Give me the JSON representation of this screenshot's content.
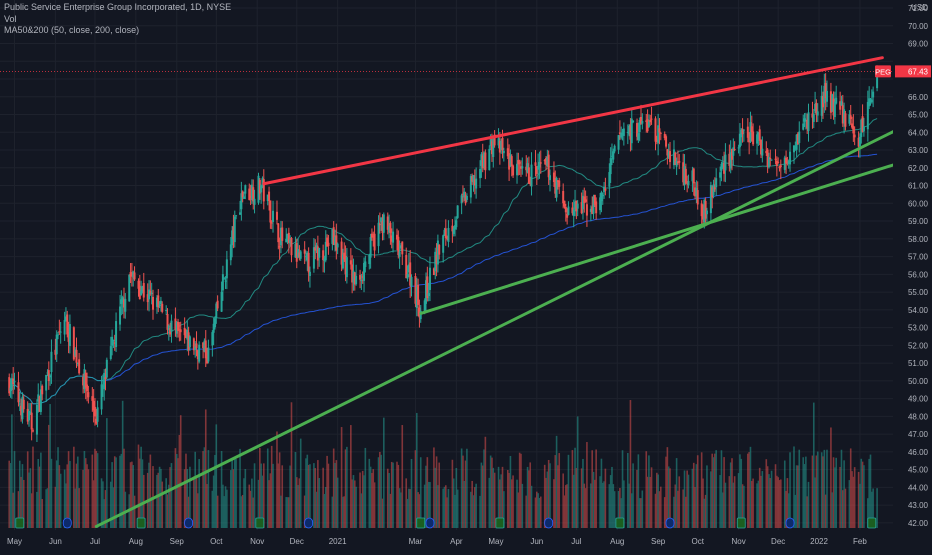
{
  "legend": {
    "title": "Public Service Enterprise Group Incorporated, 1D, NYSE",
    "volume": "Vol",
    "ma": "MA50&200 (50, close, 200, close)"
  },
  "price_axis": {
    "currency": "USD",
    "ticks": [
      "71.00",
      "70.00",
      "69.00",
      "68.00",
      "67.00",
      "66.00",
      "65.00",
      "64.00",
      "63.00",
      "62.00",
      "61.00",
      "60.00",
      "59.00",
      "58.00",
      "57.00",
      "56.00",
      "55.00",
      "54.00",
      "53.00",
      "52.00",
      "51.00",
      "50.00",
      "49.00",
      "48.00",
      "47.00",
      "46.00",
      "45.00",
      "44.00",
      "43.00",
      "42.00"
    ]
  },
  "last_price": {
    "symbol": "PEG",
    "value": "67.43",
    "color": "#f23645"
  },
  "colors": {
    "up": "#26a69a",
    "down": "#ef5350",
    "resistance": "#f23645",
    "support": "#4caf50",
    "ma50": "#26a69a",
    "ma200": "#2962ff"
  },
  "chart_data": {
    "type": "candlestick",
    "time_labels": [
      "May",
      "Jun",
      "Jul",
      "Aug",
      "Sep",
      "Oct",
      "Nov",
      "Dec",
      "2021",
      "Mar",
      "Apr",
      "May",
      "Jun",
      "Jul",
      "Aug",
      "Sep",
      "Oct",
      "Nov",
      "Dec",
      "2022",
      "Feb"
    ],
    "price_anchors": [
      {
        "t": "2020-04-27",
        "close": 50.0
      },
      {
        "t": "2020-05-14",
        "close": 47.5
      },
      {
        "t": "2020-06-08",
        "close": 53.5
      },
      {
        "t": "2020-06-25",
        "close": 49.5
      },
      {
        "t": "2020-07-02",
        "close": 48.0
      },
      {
        "t": "2020-07-27",
        "close": 56.0
      },
      {
        "t": "2020-08-19",
        "close": 54.0
      },
      {
        "t": "2020-09-02",
        "close": 52.5
      },
      {
        "t": "2020-09-25",
        "close": 51.5
      },
      {
        "t": "2020-10-20",
        "close": 60.5
      },
      {
        "t": "2020-11-04",
        "close": 61.0
      },
      {
        "t": "2020-11-19",
        "close": 58.0
      },
      {
        "t": "2020-12-08",
        "close": 56.5
      },
      {
        "t": "2020-12-28",
        "close": 58.0
      },
      {
        "t": "2021-01-15",
        "close": 55.5
      },
      {
        "t": "2021-02-04",
        "close": 59.0
      },
      {
        "t": "2021-02-25",
        "close": 56.0
      },
      {
        "t": "2021-03-05",
        "close": 54.0
      },
      {
        "t": "2021-03-19",
        "close": 57.5
      },
      {
        "t": "2021-04-13",
        "close": 61.0
      },
      {
        "t": "2021-04-29",
        "close": 63.5
      },
      {
        "t": "2021-05-20",
        "close": 61.5
      },
      {
        "t": "2021-06-10",
        "close": 62.0
      },
      {
        "t": "2021-06-24",
        "close": 59.5
      },
      {
        "t": "2021-07-19",
        "close": 60.0
      },
      {
        "t": "2021-08-04",
        "close": 64.0
      },
      {
        "t": "2021-08-25",
        "close": 64.5
      },
      {
        "t": "2021-09-08",
        "close": 63.0
      },
      {
        "t": "2021-09-29",
        "close": 61.0
      },
      {
        "t": "2021-10-06",
        "close": 59.5
      },
      {
        "t": "2021-10-22",
        "close": 62.5
      },
      {
        "t": "2021-11-10",
        "close": 64.0
      },
      {
        "t": "2021-11-30",
        "close": 62.0
      },
      {
        "t": "2021-12-17",
        "close": 64.0
      },
      {
        "t": "2022-01-05",
        "close": 66.0
      },
      {
        "t": "2022-01-20",
        "close": 65.0
      },
      {
        "t": "2022-01-31",
        "close": 63.5
      },
      {
        "t": "2022-02-14",
        "close": 67.43
      }
    ],
    "trendlines": [
      {
        "name": "resistance",
        "color": "#f23645",
        "from": {
          "t": "2020-11-06",
          "price": 61.1
        },
        "to": {
          "t": "2022-02-18",
          "price": 68.2
        }
      },
      {
        "name": "support-1",
        "color": "#4caf50",
        "from": {
          "t": "2021-03-05",
          "price": 53.8
        },
        "to": {
          "t": "2022-02-28",
          "price": 62.2
        }
      },
      {
        "name": "support-2",
        "color": "#4caf50",
        "from": {
          "t": "2020-07-02",
          "price": 41.8
        },
        "to": {
          "t": "2022-02-28",
          "price": 64.1
        }
      }
    ],
    "moving_averages": [
      "MA50",
      "MA200"
    ],
    "volume": true,
    "y_axis": {
      "min": 41.6,
      "max": 71.0,
      "side": "right"
    }
  }
}
